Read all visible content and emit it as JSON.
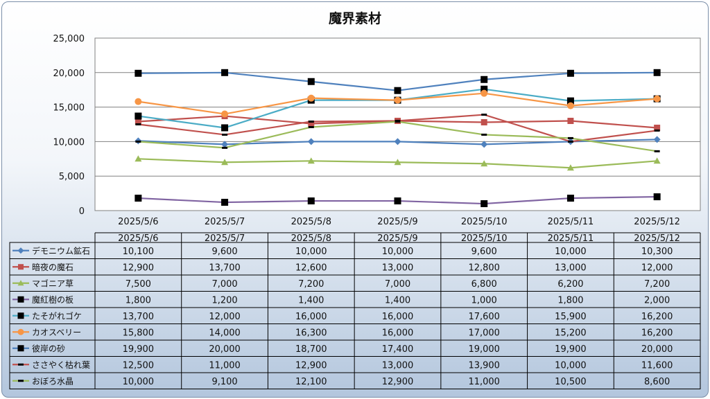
{
  "chart_data": {
    "type": "line",
    "title": "魔界素材",
    "categories": [
      "2025/5/6",
      "2025/5/7",
      "2025/5/8",
      "2025/5/9",
      "2025/5/10",
      "2025/5/11",
      "2025/5/12"
    ],
    "ylim": [
      0,
      25000
    ],
    "yticks": [
      "0",
      "5,000",
      "10,000",
      "15,000",
      "20,000",
      "25,000"
    ],
    "grid": true,
    "legend": "data-table",
    "series": [
      {
        "name": "デモニウム鉱石",
        "color": "#4f81bd",
        "marker": "diamond",
        "values": [
          10100,
          9600,
          10000,
          10000,
          9600,
          10000,
          10300
        ],
        "labels": [
          "10,100",
          "9,600",
          "10,000",
          "10,000",
          "9,600",
          "10,000",
          "10,300"
        ]
      },
      {
        "name": "暗夜の魔石",
        "color": "#c0504d",
        "marker": "square",
        "values": [
          12900,
          13700,
          12600,
          13000,
          12800,
          13000,
          12000
        ],
        "labels": [
          "12,900",
          "13,700",
          "12,600",
          "13,000",
          "12,800",
          "13,000",
          "12,000"
        ]
      },
      {
        "name": "マゴニア草",
        "color": "#9bbb59",
        "marker": "triangle",
        "values": [
          7500,
          7000,
          7200,
          7000,
          6800,
          6200,
          7200
        ],
        "labels": [
          "7,500",
          "7,000",
          "7,200",
          "7,000",
          "6,800",
          "6,200",
          "7,200"
        ]
      },
      {
        "name": "魔紅樹の板",
        "color": "#8064a2",
        "marker": "square-black",
        "values": [
          1800,
          1200,
          1400,
          1400,
          1000,
          1800,
          2000
        ],
        "labels": [
          "1,800",
          "1,200",
          "1,400",
          "1,400",
          "1,000",
          "1,800",
          "2,000"
        ]
      },
      {
        "name": "たそがれゴケ",
        "color": "#4bacc6",
        "marker": "square-black",
        "values": [
          13700,
          12000,
          16000,
          16000,
          17600,
          15900,
          16200
        ],
        "labels": [
          "13,700",
          "12,000",
          "16,000",
          "16,000",
          "17,600",
          "15,900",
          "16,200"
        ]
      },
      {
        "name": "カオスベリー",
        "color": "#f79646",
        "marker": "circle",
        "values": [
          15800,
          14000,
          16300,
          16000,
          17000,
          15200,
          16200
        ],
        "labels": [
          "15,800",
          "14,000",
          "16,300",
          "16,000",
          "17,000",
          "15,200",
          "16,200"
        ]
      },
      {
        "name": "彼岸の砂",
        "color": "#4f81bd",
        "marker": "square-black",
        "values": [
          19900,
          20000,
          18700,
          17400,
          19000,
          19900,
          20000
        ],
        "labels": [
          "19,900",
          "20,000",
          "18,700",
          "17,400",
          "19,000",
          "19,900",
          "20,000"
        ]
      },
      {
        "name": "ささやく枯れ葉",
        "color": "#c0504d",
        "marker": "dash",
        "values": [
          12500,
          11000,
          12900,
          13000,
          13900,
          10000,
          11600
        ],
        "labels": [
          "12,500",
          "11,000",
          "12,900",
          "13,000",
          "13,900",
          "10,000",
          "11,600"
        ]
      },
      {
        "name": "おぼろ水晶",
        "color": "#9bbb59",
        "marker": "dash",
        "values": [
          10000,
          9100,
          12100,
          12900,
          11000,
          10500,
          8600
        ],
        "labels": [
          "10,000",
          "9,100",
          "12,100",
          "12,900",
          "11,000",
          "10,500",
          "8,600"
        ]
      }
    ]
  }
}
